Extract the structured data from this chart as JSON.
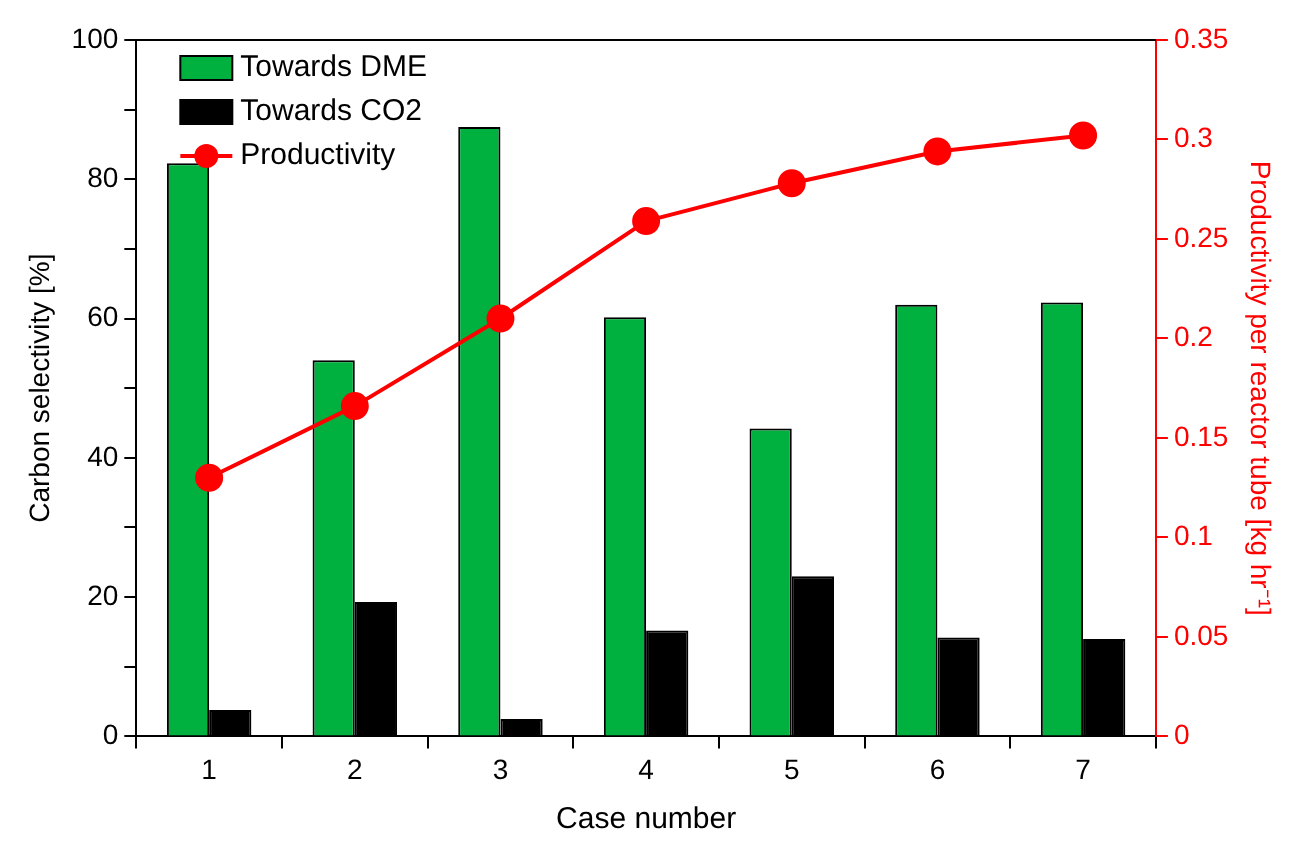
{
  "chart_data": {
    "type": "bar",
    "xlabel": "Case number",
    "ylabel": "Carbon selectivity [%]",
    "y2label": "Productivity per reactor tube [kg hr⁻¹]",
    "categories": [
      "1",
      "2",
      "3",
      "4",
      "5",
      "6",
      "7"
    ],
    "series": [
      {
        "name": "Towards DME",
        "color": "#00b140",
        "values": [
          82.3,
          54,
          87.5,
          60.2,
          44.2,
          62,
          62.3
        ]
      },
      {
        "name": "Towards CO2",
        "color": "#000000",
        "values": [
          3.8,
          19.3,
          2.5,
          15.2,
          23,
          14.2,
          14
        ]
      },
      {
        "name": "Productivity",
        "type": "line",
        "axis": "y2",
        "color": "#ff0000",
        "marker": "circle",
        "values": [
          0.13,
          0.166,
          0.21,
          0.259,
          0.278,
          0.294,
          0.302
        ]
      }
    ],
    "ylim": [
      0,
      100
    ],
    "yticks": [
      0,
      {
        "value": 10,
        "label": null
      },
      20,
      {
        "value": 30,
        "label": null
      },
      40,
      {
        "value": 50,
        "label": null
      },
      60,
      {
        "value": 70,
        "label": null
      },
      80,
      {
        "value": 90,
        "label": null
      },
      100
    ],
    "y2lim": [
      0,
      0.35
    ],
    "y2ticks": [
      0,
      0.05,
      0.1,
      0.15,
      0.2,
      0.25,
      0.3,
      0.35
    ],
    "grid": false,
    "legend": "top left"
  }
}
